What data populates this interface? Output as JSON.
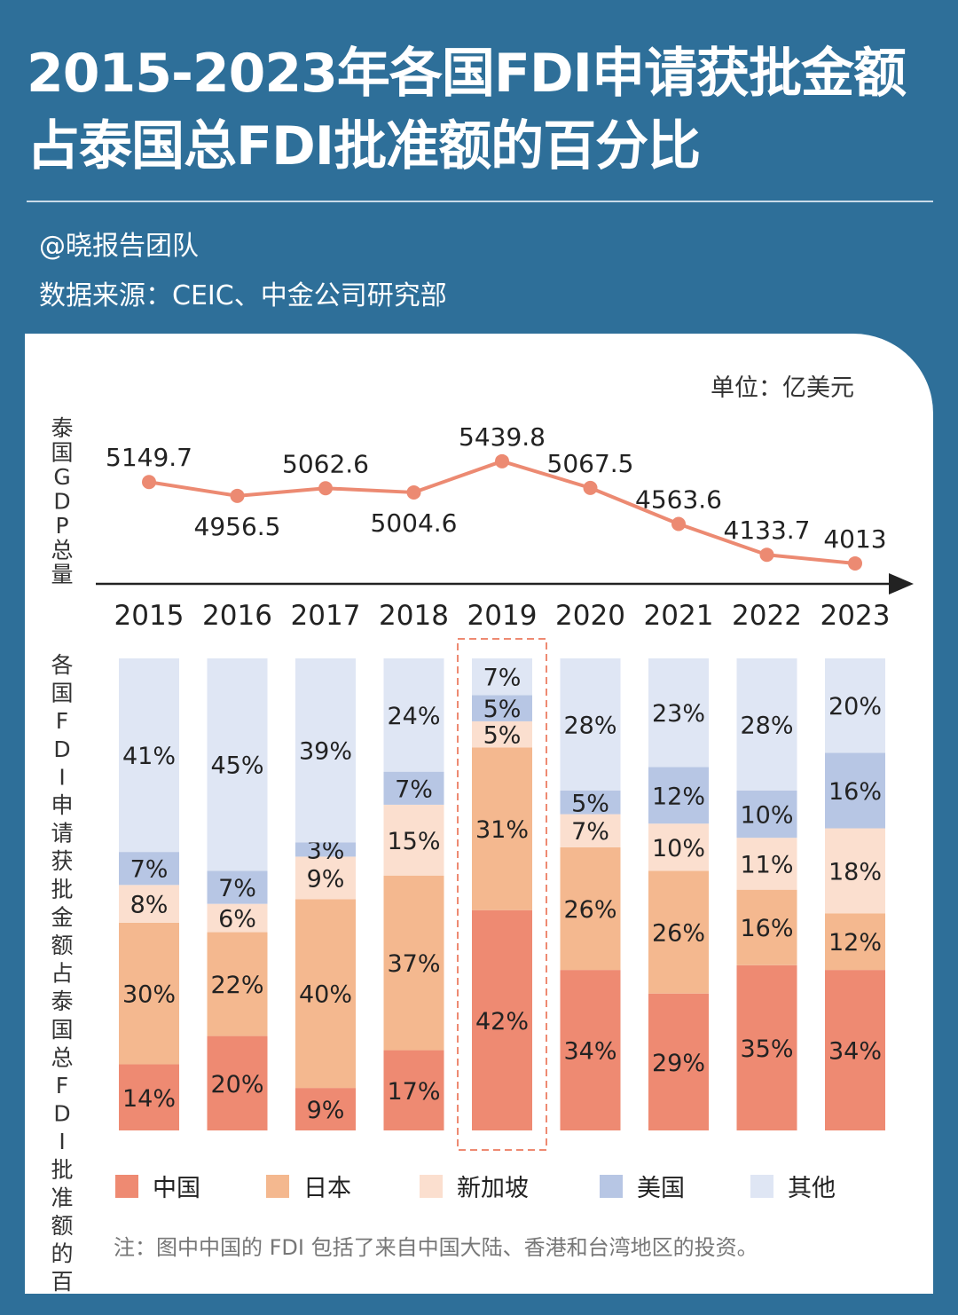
{
  "header": {
    "title_line1": "2015-2023年各国FDI申请获批金额",
    "title_line2": "占泰国总FDI批准额的百分比",
    "author": "@晓报告团队",
    "source": "数据来源：CEIC、中金公司研究部"
  },
  "chart_data": [
    {
      "type": "line",
      "title": "",
      "ylabel": "泰国GDP总量",
      "unit": "单位：亿美元",
      "x": [
        "2015",
        "2016",
        "2017",
        "2018",
        "2019",
        "2020",
        "2021",
        "2022",
        "2023"
      ],
      "values": [
        5149.7,
        4956.5,
        5062.6,
        5004.6,
        5439.8,
        5067.5,
        4563.6,
        4133.7,
        4013
      ],
      "value_labels": [
        "5149.7",
        "4956.5",
        "5062.6",
        "5004.6",
        "5439.8",
        "5067.5",
        "4563.6",
        "4133.7",
        "4013"
      ],
      "color": "#ec8a72"
    },
    {
      "type": "bar",
      "stacked": true,
      "ylabel": "各国FDI申请获批金额占泰国总FDI批准额的百分比",
      "categories": [
        "2015",
        "2016",
        "2017",
        "2018",
        "2019",
        "2020",
        "2021",
        "2022",
        "2023"
      ],
      "highlight": "2019",
      "series": [
        {
          "name": "中国",
          "color": "#ee8a72",
          "values": [
            14,
            20,
            9,
            17,
            42,
            34,
            29,
            35,
            34
          ]
        },
        {
          "name": "日本",
          "color": "#f4b88f",
          "values": [
            30,
            22,
            40,
            37,
            31,
            26,
            26,
            16,
            12
          ]
        },
        {
          "name": "新加坡",
          "color": "#fbdfcf",
          "values": [
            8,
            6,
            9,
            15,
            5,
            7,
            10,
            11,
            18
          ]
        },
        {
          "name": "美国",
          "color": "#b7c6e4",
          "values": [
            7,
            7,
            3,
            7,
            5,
            5,
            12,
            10,
            16
          ]
        },
        {
          "name": "其他",
          "color": "#dfe6f4",
          "values": [
            41,
            45,
            39,
            24,
            7,
            28,
            23,
            28,
            20
          ]
        }
      ],
      "note": "注：图中中国的 FDI 包括了来自中国大陆、香港和台湾地区的投资。"
    }
  ]
}
